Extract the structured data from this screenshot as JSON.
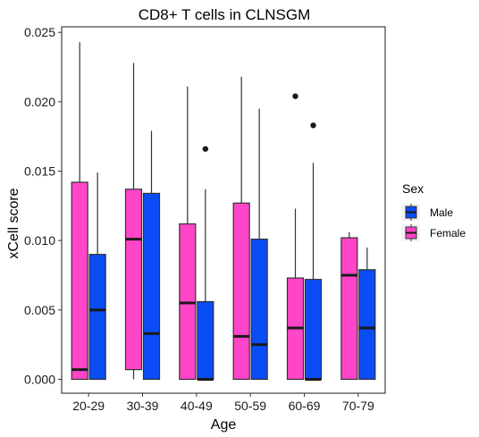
{
  "chart_data": {
    "type": "box",
    "title": "CD8+ T cells in CLNSGM",
    "xlabel": "Age",
    "ylabel": "xCell score",
    "ylim": [
      -0.001,
      0.0254
    ],
    "yticks": [
      0.0,
      0.005,
      0.01,
      0.015,
      0.02,
      0.025
    ],
    "ytick_labels": [
      "0.000",
      "0.005",
      "0.010",
      "0.015",
      "0.020",
      "0.025"
    ],
    "categories": [
      "20-29",
      "30-39",
      "40-49",
      "50-59",
      "60-69",
      "70-79"
    ],
    "grid": false,
    "legend": {
      "title": "Sex",
      "position": "right",
      "entries": [
        {
          "label": "Male",
          "color": "#0a4cf5"
        },
        {
          "label": "Female",
          "color": "#ff45c8"
        }
      ]
    },
    "series": [
      {
        "name": "Female",
        "color": "#ff45c8",
        "boxes": [
          {
            "min": 0.0,
            "q1": 0.0,
            "median": 0.0007,
            "q3": 0.0142,
            "max": 0.0243,
            "outliers": []
          },
          {
            "min": 0.0,
            "q1": 0.0007,
            "median": 0.0101,
            "q3": 0.0137,
            "max": 0.0228,
            "outliers": []
          },
          {
            "min": 0.0,
            "q1": 0.0,
            "median": 0.0055,
            "q3": 0.0112,
            "max": 0.0211,
            "outliers": []
          },
          {
            "min": 0.0,
            "q1": 0.0,
            "median": 0.0031,
            "q3": 0.0127,
            "max": 0.0218,
            "outliers": []
          },
          {
            "min": 0.0,
            "q1": 0.0,
            "median": 0.0037,
            "q3": 0.0073,
            "max": 0.0123,
            "outliers": [
              0.0204
            ]
          },
          {
            "min": 0.0,
            "q1": 0.0,
            "median": 0.0075,
            "q3": 0.0102,
            "max": 0.0106,
            "outliers": []
          }
        ]
      },
      {
        "name": "Male",
        "color": "#0a4cf5",
        "boxes": [
          {
            "min": 0.0,
            "q1": 0.0,
            "median": 0.005,
            "q3": 0.009,
            "max": 0.0149,
            "outliers": []
          },
          {
            "min": 0.0,
            "q1": 0.0,
            "median": 0.0033,
            "q3": 0.0134,
            "max": 0.0179,
            "outliers": []
          },
          {
            "min": 0.0,
            "q1": 0.0,
            "median": 0.0,
            "q3": 0.0056,
            "max": 0.0137,
            "outliers": [
              0.0166
            ]
          },
          {
            "min": 0.0,
            "q1": 0.0,
            "median": 0.0025,
            "q3": 0.0101,
            "max": 0.0195,
            "outliers": []
          },
          {
            "min": 0.0,
            "q1": 0.0,
            "median": 0.0,
            "q3": 0.0072,
            "max": 0.0156,
            "outliers": [
              0.0183
            ]
          },
          {
            "min": 0.0,
            "q1": 0.0,
            "median": 0.0037,
            "q3": 0.0079,
            "max": 0.0095,
            "outliers": []
          }
        ]
      }
    ]
  }
}
